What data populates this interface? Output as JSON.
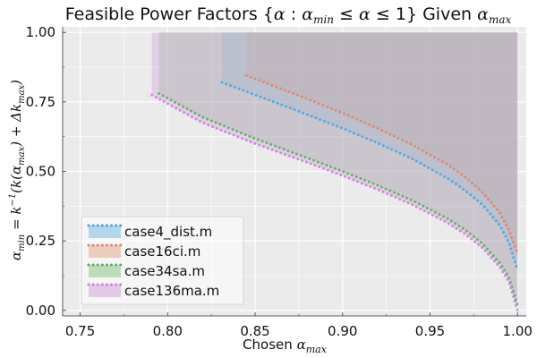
{
  "chart_data": {
    "type": "area",
    "title_parts": {
      "prefix": "Feasible Power Factors ",
      "set_open": "{",
      "alpha": "α",
      "colon": " : ",
      "alpha_min_base": "α",
      "alpha_min_sub": "min",
      "le1": " ≤ ",
      "alpha2": "α",
      "le2": " ≤ 1",
      "set_close": "}",
      "given": " Given ",
      "alpha_max_base": "α",
      "alpha_max_sub": "max"
    },
    "xlabel_parts": {
      "text": "Chosen ",
      "alpha": "α",
      "sub": "max"
    },
    "ylabel_parts": {
      "lhs": "α",
      "lhs_sub": "min",
      "eq": " = k",
      "inv": "−1",
      "body": "(k(α",
      "body_sub": "max",
      "mid": ") + Δk",
      "mid_sub": "max",
      "end": ")"
    },
    "xlim": [
      0.74,
      1.005
    ],
    "ylim": [
      -0.02,
      1.02
    ],
    "x_ticks": [
      0.75,
      0.8,
      0.85,
      0.9,
      0.95,
      1.0
    ],
    "x_tick_labels": [
      "0.75",
      "0.80",
      "0.85",
      "0.90",
      "0.95",
      "1.00"
    ],
    "y_ticks": [
      0.0,
      0.25,
      0.5,
      0.75,
      1.0
    ],
    "y_tick_labels": [
      "0.00",
      "0.25",
      "0.50",
      "0.75",
      "1.00"
    ],
    "grid": true,
    "legend_position": "bottom-left",
    "series": [
      {
        "name": "case4_dist.m",
        "color": "#4da6e0",
        "fill_color": "#7cbde6",
        "x": [
          0.831,
          0.85,
          0.87,
          0.9,
          0.92,
          0.94,
          0.96,
          0.97,
          0.98,
          0.99,
          0.995,
          1.0
        ],
        "min": [
          0.82,
          0.775,
          0.728,
          0.655,
          0.602,
          0.545,
          0.475,
          0.432,
          0.38,
          0.305,
          0.245,
          0.145
        ]
      },
      {
        "name": "case16ci.m",
        "color": "#e0866a",
        "fill_color": "#e2a98f",
        "x": [
          0.845,
          0.87,
          0.9,
          0.92,
          0.94,
          0.96,
          0.97,
          0.98,
          0.99,
          0.995,
          1.0
        ],
        "min": [
          0.845,
          0.785,
          0.71,
          0.655,
          0.595,
          0.525,
          0.48,
          0.425,
          0.35,
          0.29,
          0.205
        ]
      },
      {
        "name": "case34sa.m",
        "color": "#5fae63",
        "fill_color": "#8fc48c",
        "x": [
          0.795,
          0.82,
          0.85,
          0.88,
          0.9,
          0.92,
          0.94,
          0.96,
          0.97,
          0.98,
          0.99,
          0.995,
          1.0
        ],
        "min": [
          0.78,
          0.695,
          0.618,
          0.548,
          0.5,
          0.45,
          0.395,
          0.33,
          0.29,
          0.24,
          0.17,
          0.12,
          0.02
        ]
      },
      {
        "name": "case136ma.m",
        "color": "#cc82d8",
        "fill_color": "#d3a3dc",
        "x": [
          0.791,
          0.82,
          0.85,
          0.88,
          0.9,
          0.92,
          0.94,
          0.96,
          0.97,
          0.98,
          0.99,
          0.995,
          1.0
        ],
        "min": [
          0.775,
          0.675,
          0.6,
          0.532,
          0.485,
          0.435,
          0.38,
          0.315,
          0.275,
          0.225,
          0.155,
          0.105,
          0.0
        ]
      }
    ],
    "plot_bg": "#ebebeb",
    "grid_color": "#ffffff"
  }
}
